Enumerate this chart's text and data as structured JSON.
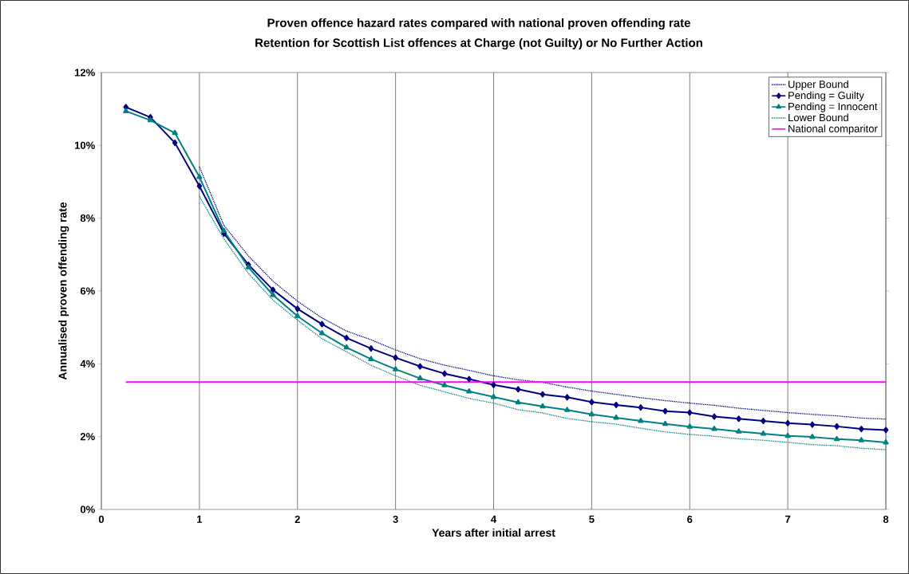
{
  "chart_data": {
    "type": "line",
    "title": "Proven offence hazard rates compared with national proven offending rate",
    "subtitle": "Retention for Scottish List offences at Charge (not Guilty) or No Further Action",
    "xlabel": "Years after initial arrest",
    "ylabel": "Annualised proven offending rate",
    "x": [
      0.25,
      0.5,
      0.75,
      1,
      1.25,
      1.5,
      1.75,
      2,
      2.25,
      2.5,
      2.75,
      3,
      3.25,
      3.5,
      3.75,
      4,
      4.25,
      4.5,
      4.75,
      5,
      5.25,
      5.5,
      5.75,
      6,
      6.25,
      6.5,
      6.75,
      7,
      7.25,
      7.5,
      7.75,
      8
    ],
    "series": [
      {
        "name": "Upper Bound",
        "color": "#000080",
        "line_style": "dotted",
        "marker": "none",
        "values": [
          null,
          null,
          null,
          9.41,
          7.8,
          6.96,
          6.27,
          5.72,
          5.26,
          4.9,
          4.66,
          4.38,
          4.14,
          3.96,
          3.82,
          3.67,
          3.56,
          3.49,
          3.36,
          3.25,
          3.16,
          3.07,
          2.99,
          2.92,
          2.86,
          2.78,
          2.72,
          2.66,
          2.61,
          2.57,
          2.51,
          2.48
        ]
      },
      {
        "name": "Pending = Guilty",
        "color": "#000080",
        "line_style": "solid",
        "marker": "diamond",
        "values": [
          11.05,
          10.77,
          10.07,
          8.88,
          7.58,
          6.72,
          6.03,
          5.51,
          5.09,
          4.71,
          4.42,
          4.17,
          3.93,
          3.73,
          3.58,
          3.42,
          3.3,
          3.16,
          3.08,
          2.95,
          2.87,
          2.8,
          2.7,
          2.66,
          2.55,
          2.49,
          2.43,
          2.37,
          2.33,
          2.28,
          2.21,
          2.18
        ]
      },
      {
        "name": "Pending = Innocent",
        "color": "#008080",
        "line_style": "solid",
        "marker": "triangle",
        "values": [
          10.94,
          10.69,
          10.34,
          9.13,
          7.65,
          6.65,
          5.89,
          5.31,
          4.84,
          4.45,
          4.13,
          3.85,
          3.6,
          3.41,
          3.24,
          3.09,
          2.94,
          2.83,
          2.73,
          2.61,
          2.52,
          2.43,
          2.35,
          2.27,
          2.21,
          2.14,
          2.08,
          2.02,
          1.99,
          1.93,
          1.9,
          1.84
        ]
      },
      {
        "name": "Lower Bound",
        "color": "#008080",
        "line_style": "dotted",
        "marker": "none",
        "values": [
          null,
          null,
          null,
          8.6,
          7.43,
          6.48,
          5.75,
          5.2,
          4.69,
          4.33,
          3.96,
          3.67,
          3.41,
          3.23,
          3.05,
          2.92,
          2.74,
          2.65,
          2.5,
          2.41,
          2.34,
          2.23,
          2.13,
          2.06,
          2.01,
          1.94,
          1.9,
          1.84,
          1.78,
          1.75,
          1.68,
          1.64
        ]
      },
      {
        "name": "National comparitor",
        "color": "#ff00ff",
        "line_style": "solid",
        "marker": "none",
        "x": [
          0.25,
          8
        ],
        "values": [
          3.5,
          3.5
        ]
      }
    ],
    "xlim": [
      0,
      8
    ],
    "xticks": [
      0,
      1,
      2,
      3,
      4,
      5,
      6,
      7,
      8
    ],
    "ylim": [
      0,
      12
    ],
    "yticks": [
      {
        "value": 0,
        "label": "0%"
      },
      {
        "value": 2,
        "label": "2%"
      },
      {
        "value": 4,
        "label": "4%"
      },
      {
        "value": 6,
        "label": "6%"
      },
      {
        "value": 8,
        "label": "8%"
      },
      {
        "value": 10,
        "label": "10%"
      },
      {
        "value": 12,
        "label": "12%"
      }
    ],
    "grid": "x",
    "legend": "top right"
  }
}
